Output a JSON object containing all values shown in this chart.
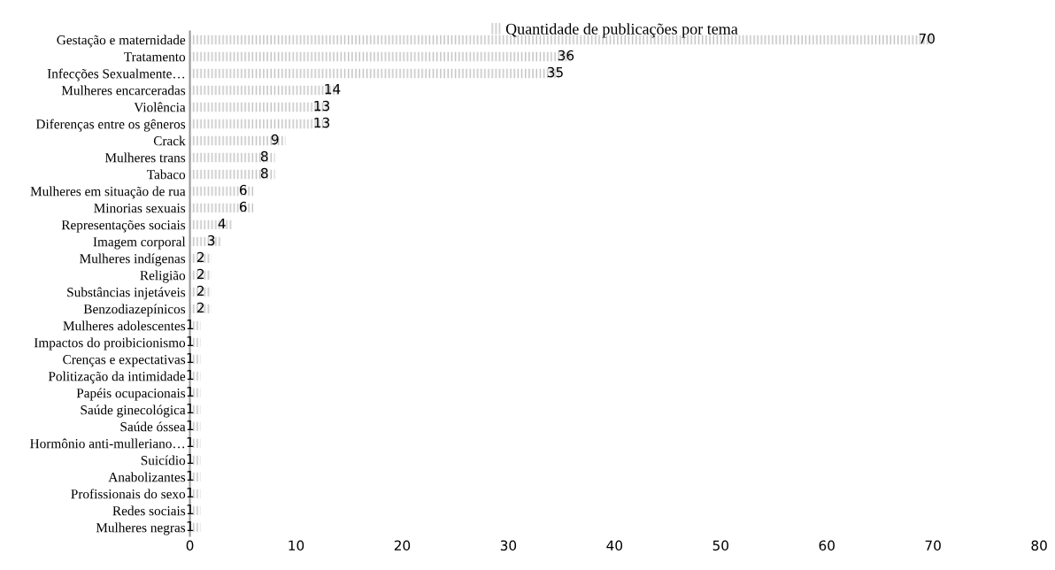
{
  "chart_data": {
    "type": "bar",
    "orientation": "horizontal",
    "legend": "top",
    "data_labels": true,
    "grid": false,
    "categories": [
      "Gestação e maternidade",
      "Tratamento",
      "Infecções Sexualmente…",
      "Mulheres encarceradas",
      "Violência",
      "Diferenças entre os gêneros",
      "Crack",
      "Mulheres trans",
      "Tabaco",
      "Mulheres em situação de rua",
      "Minorias sexuais",
      "Representações sociais",
      "Imagem corporal",
      "Mulheres indígenas",
      "Religião",
      "Substâncias injetáveis",
      "Benzodiazepínicos",
      "Mulheres adolescentes",
      "Impactos do proibicionismo",
      "Crenças e expectativas",
      "Politização da intimidade",
      "Papéis ocupacionais",
      "Saúde ginecológica",
      "Saúde óssea",
      "Hormônio anti-mulleriano…",
      "Suicídio",
      "Anabolizantes",
      "Profissionais do sexo",
      "Redes sociais",
      "Mulheres negras"
    ],
    "series": [
      {
        "name": "Quantidade de publicações por tema",
        "color": "#bfbfbf",
        "values": [
          70,
          36,
          35,
          14,
          13,
          13,
          9,
          8,
          8,
          6,
          6,
          4,
          3,
          2,
          2,
          2,
          2,
          1,
          1,
          1,
          1,
          1,
          1,
          1,
          1,
          1,
          1,
          1,
          1,
          1
        ]
      }
    ],
    "xlim": [
      0,
      80
    ],
    "xticks": [
      0,
      10,
      20,
      30,
      40,
      50,
      60,
      70,
      80
    ]
  }
}
